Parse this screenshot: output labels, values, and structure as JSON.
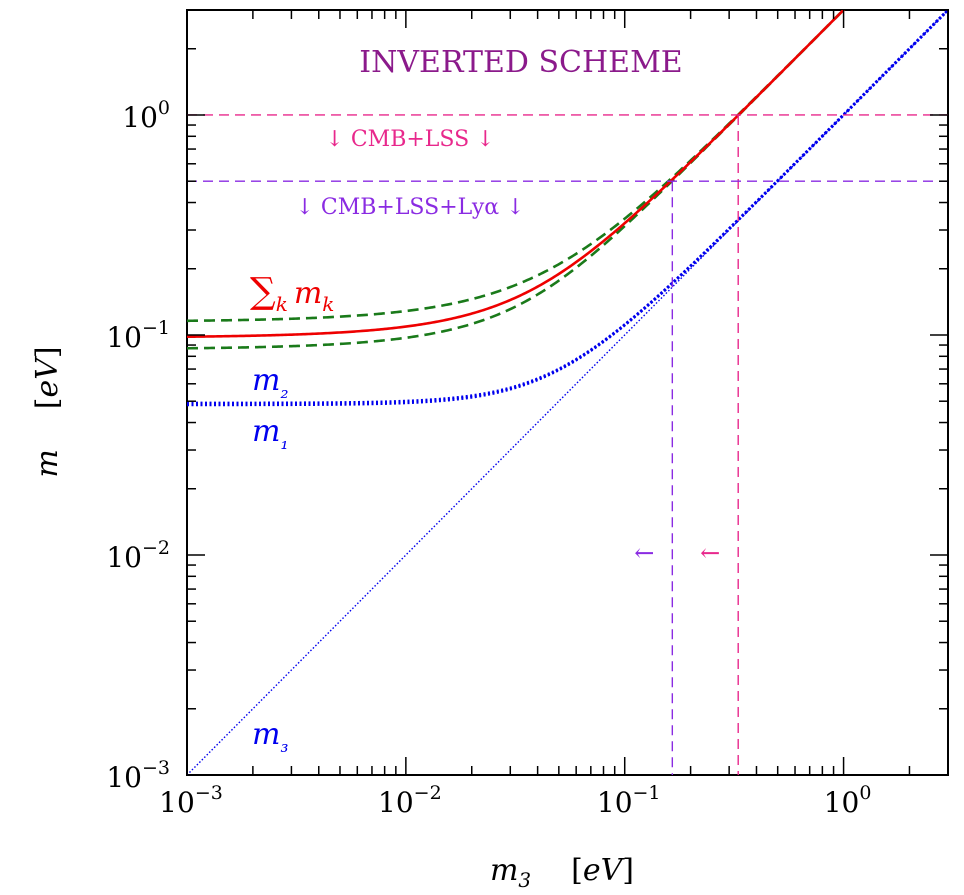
{
  "chart_data": {
    "type": "line",
    "title": "INVERTED SCHEME",
    "xlabel": "m₃ [eV]",
    "ylabel": "m [eV]",
    "x_scale": "log",
    "y_scale": "log",
    "xlim": [
      0.001,
      3.0
    ],
    "ylim": [
      0.001,
      3.0
    ],
    "x_ticks": [
      {
        "base": "10",
        "exp": "−3",
        "value": 0.001
      },
      {
        "base": "10",
        "exp": "−2",
        "value": 0.01
      },
      {
        "base": "10",
        "exp": "−1",
        "value": 0.1
      },
      {
        "base": "10",
        "exp": "0",
        "value": 1
      }
    ],
    "y_ticks": [
      {
        "base": "10",
        "exp": "−3",
        "value": 0.001
      },
      {
        "base": "10",
        "exp": "−2",
        "value": 0.01
      },
      {
        "base": "10",
        "exp": "−1",
        "value": 0.1
      },
      {
        "base": "10",
        "exp": "0",
        "value": 1
      }
    ],
    "model": {
      "dm2_atm": 0.0024,
      "dm2_sol": 7.9e-05,
      "sum_band": [
        0.087,
        0.116
      ]
    },
    "series": [
      {
        "name": "m₃",
        "label_text": "m₃",
        "color": "#0000ee",
        "style": "fine-dotted"
      },
      {
        "name": "m₁",
        "label_text": "m₁",
        "color": "#0000ee",
        "style": "dotted"
      },
      {
        "name": "m₂",
        "label_text": "m₂",
        "color": "#0000ee",
        "style": "dotted"
      },
      {
        "name": "Σk mk",
        "label_text": "∑k mk",
        "color": "#ee0000",
        "style": "solid"
      },
      {
        "color": "#1a7a1a",
        "style": "dashed",
        "band": "upper"
      },
      {
        "color": "#1a7a1a",
        "style": "dashed",
        "band": "lower"
      }
    ],
    "limits": [
      {
        "label": "↓ CMB+LSS ↓",
        "sum_limit": 1.0,
        "m3_limit": 0.33,
        "color": "#e8288c",
        "arrow": "←"
      },
      {
        "label": "↓ CMB+LSS+Lyα ↓",
        "sum_limit": 0.5,
        "m3_limit": 0.165,
        "color": "#8a2be2",
        "arrow": "←"
      }
    ],
    "colors": {
      "title": "#8b1a8b",
      "axes": "#000000"
    }
  }
}
